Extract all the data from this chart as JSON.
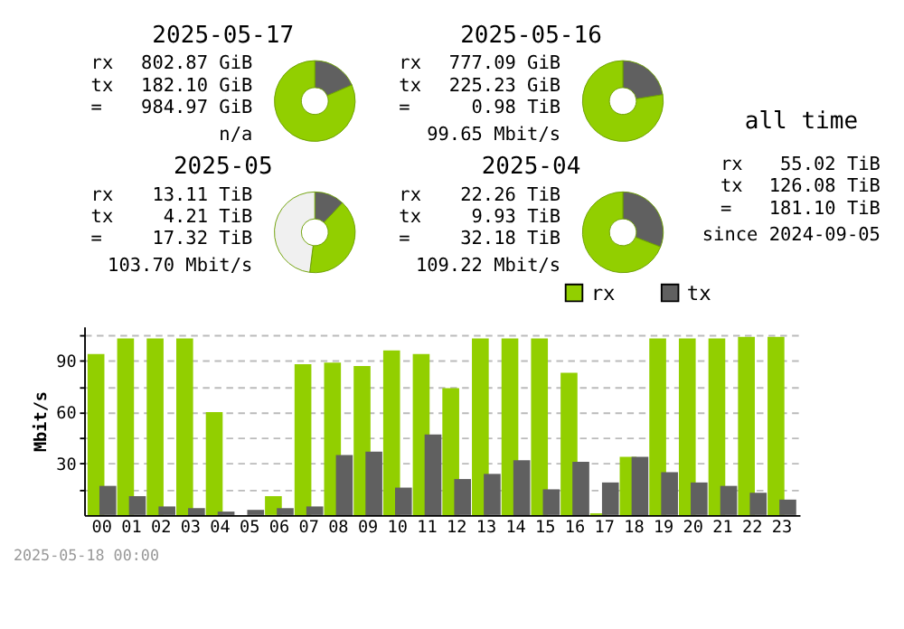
{
  "chart_data": [
    {
      "type": "donut",
      "title": "2025-05-17",
      "categories": [
        null,
        null
      ],
      "values": [
        18.5,
        81.5
      ],
      "colors": [
        "#606060",
        "#92cf00"
      ],
      "annotations": [
        "rx",
        "802.87 GiB",
        "tx",
        "182.10 GiB",
        "=",
        "984.97 GiB",
        "n/a"
      ]
    },
    {
      "type": "donut",
      "title": "2025-05-16",
      "categories": [
        null,
        null
      ],
      "values": [
        22.5,
        77.5
      ],
      "colors": [
        "#606060",
        "#92cf00"
      ],
      "annotations": [
        "rx",
        "777.09 GiB",
        "tx",
        "225.23 GiB",
        "=",
        "0.98 TiB",
        "99.65 Mbit/s"
      ]
    },
    {
      "type": "donut",
      "title": "2025-05",
      "categories": [
        null,
        null,
        null
      ],
      "values": [
        12,
        40,
        48
      ],
      "colors": [
        "#606060",
        "#92cf00",
        "#f0f0f0"
      ],
      "annotations": [
        "rx",
        "13.11 TiB",
        "tx",
        "4.21 TiB",
        "=",
        "17.32 TiB",
        "103.70 Mbit/s"
      ]
    },
    {
      "type": "donut",
      "title": "2025-04",
      "categories": [
        null,
        null
      ],
      "values": [
        30.9,
        69.1
      ],
      "colors": [
        "#606060",
        "#92cf00"
      ],
      "annotations": [
        "rx",
        "22.26 TiB",
        "tx",
        "9.93 TiB",
        "=",
        "32.18 TiB",
        "109.22 Mbit/s"
      ]
    },
    {
      "type": "other",
      "title": "all time",
      "annotations": [
        "rx",
        "55.02 TiB",
        "tx",
        "126.08 TiB",
        "=",
        "181.10 TiB",
        "since 2024-09-05"
      ]
    },
    {
      "type": "bar",
      "ylabel": "Mbit/s",
      "legend": "top right",
      "grid": "y",
      "ylim": [
        0,
        110
      ],
      "yticks": [
        {
          "value": 15,
          "label": null
        },
        30,
        {
          "value": 45,
          "label": null
        },
        60,
        {
          "value": 75,
          "label": null
        },
        90,
        {
          "value": 105,
          "label": null
        }
      ],
      "categories": [
        "00",
        "01",
        "02",
        "03",
        "04",
        "05",
        "06",
        "07",
        "08",
        "09",
        "10",
        "11",
        "12",
        "13",
        "14",
        "15",
        "16",
        "17",
        "18",
        "19",
        "20",
        "21",
        "22",
        "23"
      ],
      "series": [
        {
          "name": "rx",
          "color": "#92cf00",
          "values": [
            94,
            103,
            103,
            103,
            60,
            0,
            11,
            88,
            89,
            87,
            96,
            94,
            74,
            103,
            103,
            103,
            83,
            1,
            34,
            103,
            103,
            103,
            104,
            104
          ]
        },
        {
          "name": "tx",
          "color": "#606060",
          "values": [
            17,
            11,
            5,
            4,
            2,
            3,
            4,
            5,
            35,
            37,
            16,
            47,
            21,
            24,
            32,
            15,
            31,
            19,
            34,
            25,
            19,
            17,
            13,
            9
          ]
        }
      ],
      "annotations": [
        "2025-05-18 00:00"
      ]
    }
  ]
}
